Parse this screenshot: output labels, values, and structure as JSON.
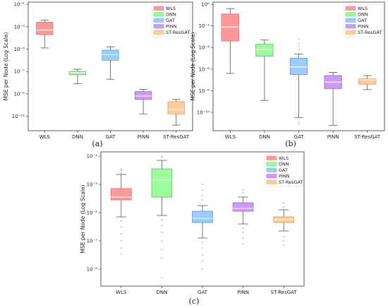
{
  "colors": {
    "WLS": "#ff9999",
    "DNN": "#99ff99",
    "GAT": "#99ccff",
    "PINN": "#cc99ff",
    "ST-ResGAT": "#ffcc99",
    "WLS_edge": "#e06666",
    "DNN_edge": "#55bb55",
    "GAT_edge": "#5599dd",
    "PINN_edge": "#9966cc",
    "ST-ResGAT_edge": "#dd9955"
  },
  "chart_data": [
    {
      "type": "box",
      "caption": "(a)",
      "ylabel": "MSE per Node (Log Scale)",
      "yscale": "log",
      "ylim_log10": [
        -12.3,
        -0.8
      ],
      "y_ticks": [
        {
          "exp": -1,
          "label": "10⁻¹"
        },
        {
          "exp": -3,
          "label": "10⁻³"
        },
        {
          "exp": -5,
          "label": "10⁻⁵"
        },
        {
          "exp": -7,
          "label": "10⁻⁷"
        },
        {
          "exp": -9,
          "label": "10⁻⁹"
        },
        {
          "exp": -11,
          "label": "10⁻¹¹"
        }
      ],
      "categories": [
        "WLS",
        "DNN",
        "GAT",
        "PINN",
        "ST-ResGAT"
      ],
      "legend": [
        "WLS",
        "DNN",
        "GAT",
        "PINN",
        "ST-ResGAT"
      ],
      "boxes_log10": [
        {
          "name": "WLS",
          "whislo": -4.9,
          "q1": -3.7,
          "med": -3.3,
          "q3": -2.6,
          "whishi": -2.4
        },
        {
          "name": "DNN",
          "whislo": -8.1,
          "q1": -7.3,
          "med": -7.1,
          "q3": -7.0,
          "whishi": -6.8
        },
        {
          "name": "GAT",
          "whislo": -7.7,
          "q1": -6.0,
          "med": -5.5,
          "q3": -5.1,
          "whishi": -4.8
        },
        {
          "name": "PINN",
          "whislo": -10.8,
          "q1": -9.5,
          "med": -9.2,
          "q3": -8.8,
          "whishi": -8.6
        },
        {
          "name": "ST-ResGAT",
          "whislo": -11.8,
          "q1": -10.8,
          "med": -10.4,
          "q3": -9.7,
          "whishi": -9.5
        }
      ],
      "outliers_log10": []
    },
    {
      "type": "box",
      "caption": "(b)",
      "ylabel": "MSE per Node (Log Scale)",
      "yscale": "log",
      "ylim_log10": [
        -11.7,
        0.2
      ],
      "y_ticks": [
        {
          "exp": 0,
          "label": "10⁰"
        },
        {
          "exp": -2,
          "label": "10⁻²"
        },
        {
          "exp": -4,
          "label": "10⁻⁴"
        },
        {
          "exp": -6,
          "label": "10⁻⁶"
        },
        {
          "exp": -8,
          "label": "10⁻⁸"
        },
        {
          "exp": -10,
          "label": "10⁻¹⁰"
        }
      ],
      "categories": [
        "WLS",
        "DNN",
        "GAT",
        "PINN",
        "ST-ResGAT"
      ],
      "legend": [
        "WLS",
        "DNN",
        "GAT",
        "PINN",
        "ST-ResGAT"
      ],
      "boxes_log10": [
        {
          "name": "WLS",
          "whislo": -6.4,
          "q1": -3.4,
          "med": -2.1,
          "q3": -0.9,
          "whishi": -0.4
        },
        {
          "name": "DNN",
          "whislo": -8.9,
          "q1": -4.8,
          "med": -4.2,
          "q3": -3.7,
          "whishi": -3.3
        },
        {
          "name": "GAT",
          "whislo": -10.5,
          "q1": -6.5,
          "med": -5.8,
          "q3": -5.0,
          "whishi": -4.6
        },
        {
          "name": "PINN",
          "whislo": -11.2,
          "q1": -7.8,
          "med": -7.2,
          "q3": -6.6,
          "whishi": -6.3
        },
        {
          "name": "ST-ResGAT",
          "whislo": -7.9,
          "q1": -7.4,
          "med": -7.0,
          "q3": -6.9,
          "whishi": -6.6
        }
      ],
      "outliers_log10": [
        {
          "cat": 2,
          "values": [
            -3.2,
            -3.6,
            -3.9,
            -4.2,
            -10.9,
            -11.1
          ]
        }
      ]
    },
    {
      "type": "box",
      "caption": "(c)",
      "ylabel": "MSE per Node (Log Scale)",
      "yscale": "log",
      "ylim_log10": [
        -10.2,
        -0.7
      ],
      "y_ticks": [
        {
          "exp": -1,
          "label": "10⁻¹"
        },
        {
          "exp": -3,
          "label": "10⁻³"
        },
        {
          "exp": -5,
          "label": "10⁻⁵"
        },
        {
          "exp": -7,
          "label": "10⁻⁷"
        },
        {
          "exp": -9,
          "label": "10⁻⁹"
        }
      ],
      "categories": [
        "WLS",
        "DNN",
        "GAT",
        "PINN",
        "ST-ResGAT"
      ],
      "legend": [
        "WLS",
        "DNN",
        "GAT",
        "PINN",
        "ST-ResGAT"
      ],
      "boxes_log10": [
        {
          "name": "WLS",
          "whislo": -5.3,
          "q1": -4.1,
          "med": -3.9,
          "q3": -3.3,
          "whishi": -2.3
        },
        {
          "name": "DNN",
          "whislo": -5.2,
          "q1": -3.9,
          "med": -2.7,
          "q3": -1.9,
          "whishi": -1.3
        },
        {
          "name": "GAT",
          "whislo": -6.8,
          "q1": -5.7,
          "med": -5.4,
          "q3": -4.9,
          "whishi": -4.5
        },
        {
          "name": "PINN",
          "whislo": -5.8,
          "q1": -4.9,
          "med": -4.7,
          "q3": -4.3,
          "whishi": -3.9
        },
        {
          "name": "ST-ResGAT",
          "whislo": -6.3,
          "q1": -5.7,
          "med": -5.5,
          "q3": -5.3,
          "whishi": -4.8
        }
      ],
      "outliers_log10": [
        {
          "cat": 0,
          "values": [
            -1.9,
            -2.0,
            -2.2,
            -5.6,
            -6.0,
            -6.5,
            -7.0,
            -7.5,
            -7.9
          ]
        },
        {
          "cat": 1,
          "values": [
            -1.1,
            -1.0,
            -5.5,
            -5.9,
            -6.4,
            -7.0,
            -7.6,
            -8.2,
            -9.6
          ]
        },
        {
          "cat": 2,
          "values": [
            -3.0,
            -3.4,
            -3.8,
            -4.1,
            -7.1,
            -7.5,
            -8.0,
            -8.4,
            -9.0
          ]
        },
        {
          "cat": 3,
          "values": [
            -3.4,
            -3.6,
            -6.1,
            -6.4,
            -6.8,
            -7.2
          ]
        },
        {
          "cat": 4,
          "values": [
            -4.3,
            -4.6,
            -6.7,
            -7.0,
            -7.3
          ]
        }
      ]
    }
  ]
}
